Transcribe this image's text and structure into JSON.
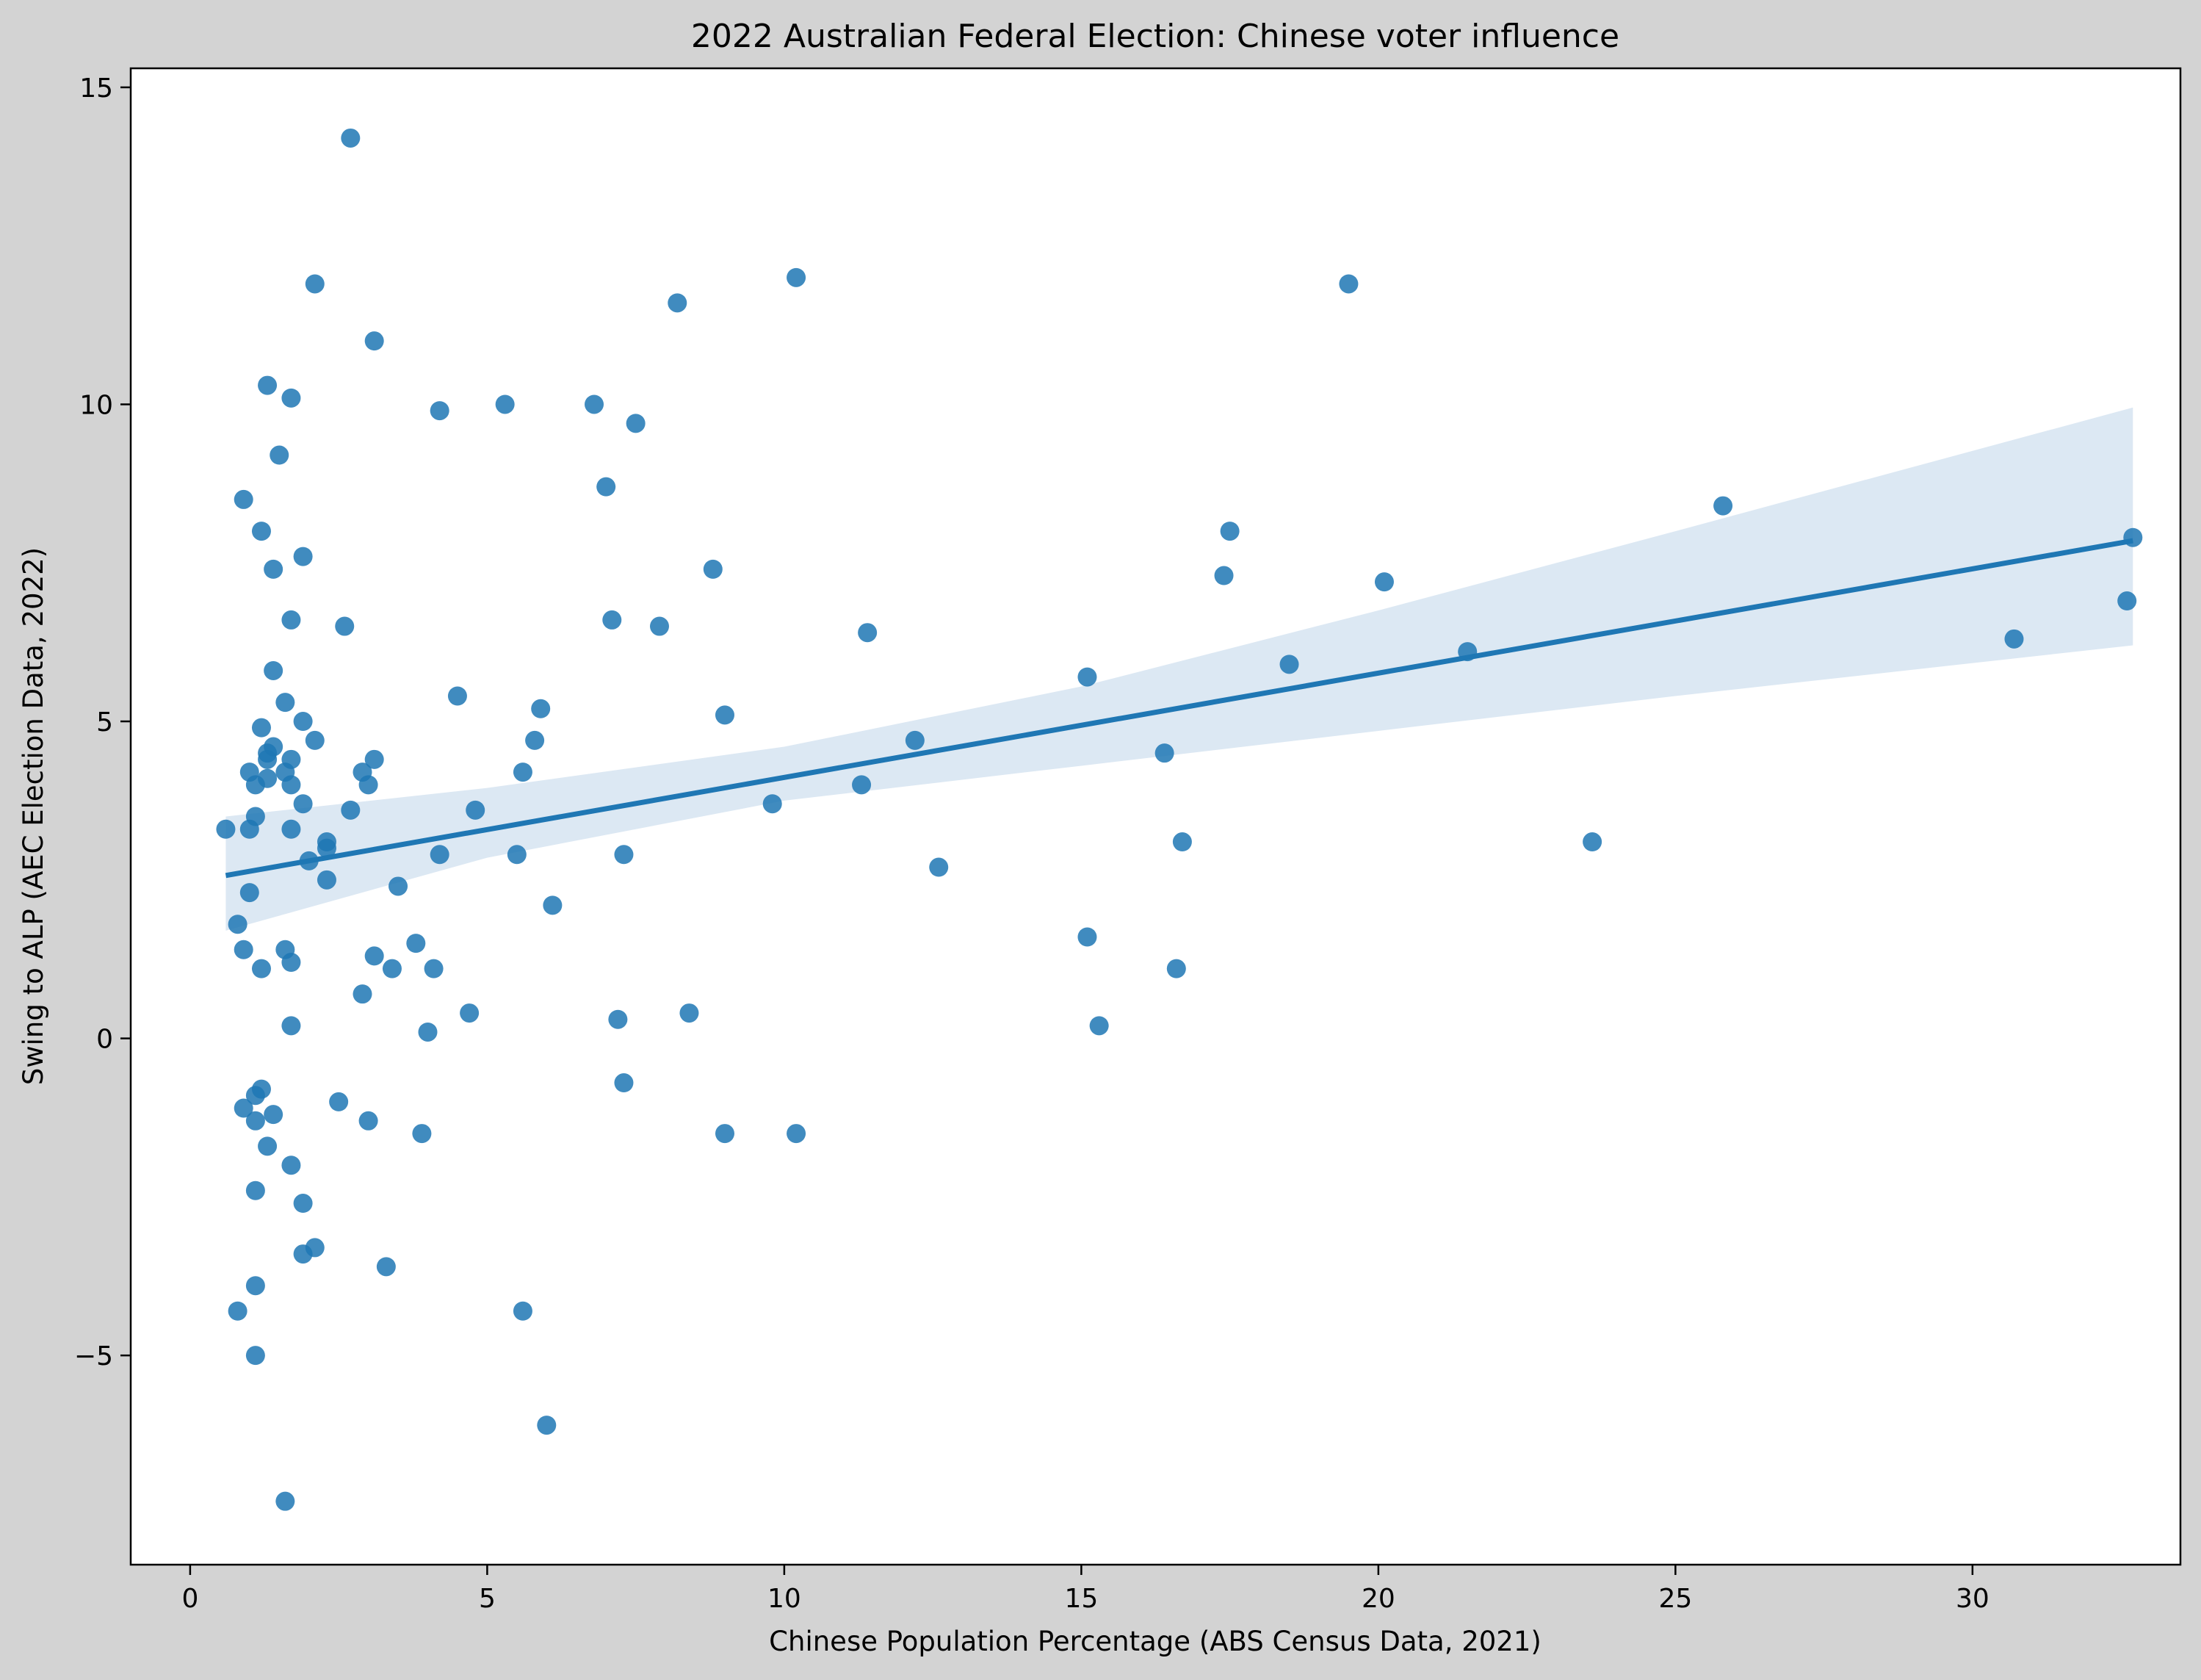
{
  "chart_data": {
    "type": "scatter",
    "title": "2022 Australian Federal Election: Chinese voter influence",
    "xlabel": "Chinese Population Percentage (ABS Census Data, 2021)",
    "ylabel": "Swing to ALP (AEC Election Data, 2022)",
    "xlim": [
      -1.0,
      33.5
    ],
    "ylim": [
      -8.3,
      15.3
    ],
    "xticks": [
      0,
      5,
      10,
      15,
      20,
      25,
      30
    ],
    "yticks": [
      -5,
      0,
      5,
      10,
      15
    ],
    "tick_labels_x": [
      "0",
      "5",
      "10",
      "15",
      "20",
      "25",
      "30"
    ],
    "tick_labels_y": [
      "−5",
      "0",
      "5",
      "10",
      "15"
    ],
    "grid": false,
    "colors": {
      "figure_bg": "#d3d3d3",
      "plot_bg": "#ffffff",
      "points": "#1f77b4",
      "regression_line": "#1f77b4",
      "confidence_band": "#dce8f3"
    },
    "regression": {
      "x": [
        0.6,
        32.7
      ],
      "y": [
        2.57,
        7.85
      ],
      "band_x": [
        0.6,
        5,
        10,
        15,
        20,
        25,
        32.7
      ],
      "band_lower": [
        1.7,
        2.85,
        3.75,
        4.3,
        4.85,
        5.4,
        6.2
      ],
      "band_upper": [
        3.5,
        3.95,
        4.6,
        5.55,
        6.75,
        8.0,
        9.95
      ]
    },
    "points": [
      [
        0.6,
        3.3
      ],
      [
        0.8,
        1.8
      ],
      [
        0.8,
        -4.3
      ],
      [
        0.9,
        8.5
      ],
      [
        0.9,
        1.4
      ],
      [
        0.9,
        -1.1
      ],
      [
        1.0,
        4.2
      ],
      [
        1.0,
        3.3
      ],
      [
        1.0,
        2.3
      ],
      [
        1.1,
        4.0
      ],
      [
        1.1,
        3.5
      ],
      [
        1.1,
        -0.9
      ],
      [
        1.1,
        -1.3
      ],
      [
        1.1,
        -2.4
      ],
      [
        1.1,
        -3.9
      ],
      [
        1.1,
        -5.0
      ],
      [
        1.2,
        8.0
      ],
      [
        1.2,
        4.9
      ],
      [
        1.2,
        1.1
      ],
      [
        1.2,
        -0.8
      ],
      [
        1.3,
        10.3
      ],
      [
        1.3,
        4.5
      ],
      [
        1.3,
        4.4
      ],
      [
        1.3,
        4.1
      ],
      [
        1.3,
        -1.7
      ],
      [
        1.4,
        7.4
      ],
      [
        1.4,
        5.8
      ],
      [
        1.4,
        4.6
      ],
      [
        1.4,
        -1.2
      ],
      [
        1.5,
        9.2
      ],
      [
        1.6,
        5.3
      ],
      [
        1.6,
        4.2
      ],
      [
        1.6,
        1.4
      ],
      [
        1.6,
        -7.3
      ],
      [
        1.7,
        10.1
      ],
      [
        1.7,
        6.6
      ],
      [
        1.7,
        4.4
      ],
      [
        1.7,
        4.0
      ],
      [
        1.7,
        3.3
      ],
      [
        1.7,
        1.2
      ],
      [
        1.7,
        0.2
      ],
      [
        1.7,
        -2.0
      ],
      [
        1.9,
        7.6
      ],
      [
        1.9,
        5.0
      ],
      [
        1.9,
        3.7
      ],
      [
        1.9,
        -2.6
      ],
      [
        1.9,
        -3.4
      ],
      [
        2.0,
        2.8
      ],
      [
        2.1,
        11.9
      ],
      [
        2.1,
        4.7
      ],
      [
        2.1,
        -3.3
      ],
      [
        2.3,
        3.1
      ],
      [
        2.3,
        3.0
      ],
      [
        2.3,
        2.5
      ],
      [
        2.5,
        -1.0
      ],
      [
        2.6,
        6.5
      ],
      [
        2.7,
        14.2
      ],
      [
        2.7,
        3.6
      ],
      [
        2.9,
        4.2
      ],
      [
        2.9,
        0.7
      ],
      [
        3.0,
        4.0
      ],
      [
        3.0,
        -1.3
      ],
      [
        3.1,
        11.0
      ],
      [
        3.1,
        4.4
      ],
      [
        3.1,
        1.3
      ],
      [
        3.3,
        -3.6
      ],
      [
        3.4,
        1.1
      ],
      [
        3.5,
        2.4
      ],
      [
        3.8,
        1.5
      ],
      [
        3.9,
        -1.5
      ],
      [
        4.0,
        0.1
      ],
      [
        4.1,
        1.1
      ],
      [
        4.2,
        9.9
      ],
      [
        4.2,
        2.9
      ],
      [
        4.5,
        5.4
      ],
      [
        4.7,
        0.4
      ],
      [
        4.8,
        3.6
      ],
      [
        5.3,
        10.0
      ],
      [
        5.5,
        2.9
      ],
      [
        5.6,
        4.2
      ],
      [
        5.6,
        -4.3
      ],
      [
        5.8,
        4.7
      ],
      [
        5.9,
        5.2
      ],
      [
        6.0,
        -6.1
      ],
      [
        6.1,
        2.1
      ],
      [
        6.8,
        10.0
      ],
      [
        7.0,
        8.7
      ],
      [
        7.1,
        6.6
      ],
      [
        7.2,
        0.3
      ],
      [
        7.3,
        2.9
      ],
      [
        7.3,
        -0.7
      ],
      [
        7.5,
        9.7
      ],
      [
        7.9,
        6.5
      ],
      [
        8.2,
        11.6
      ],
      [
        8.4,
        0.4
      ],
      [
        8.8,
        7.4
      ],
      [
        9.0,
        5.1
      ],
      [
        9.0,
        -1.5
      ],
      [
        9.8,
        3.7
      ],
      [
        10.2,
        12.0
      ],
      [
        10.2,
        -1.5
      ],
      [
        11.3,
        4.0
      ],
      [
        11.4,
        6.4
      ],
      [
        12.2,
        4.7
      ],
      [
        12.6,
        2.7
      ],
      [
        15.1,
        5.7
      ],
      [
        15.1,
        1.6
      ],
      [
        15.3,
        0.2
      ],
      [
        16.4,
        4.5
      ],
      [
        16.6,
        1.1
      ],
      [
        16.7,
        3.1
      ],
      [
        17.4,
        7.3
      ],
      [
        17.5,
        8.0
      ],
      [
        18.5,
        5.9
      ],
      [
        19.5,
        11.9
      ],
      [
        20.1,
        7.2
      ],
      [
        21.5,
        6.1
      ],
      [
        23.6,
        3.1
      ],
      [
        25.8,
        8.4
      ],
      [
        30.7,
        6.3
      ],
      [
        32.6,
        6.9
      ],
      [
        32.7,
        7.9
      ]
    ]
  }
}
